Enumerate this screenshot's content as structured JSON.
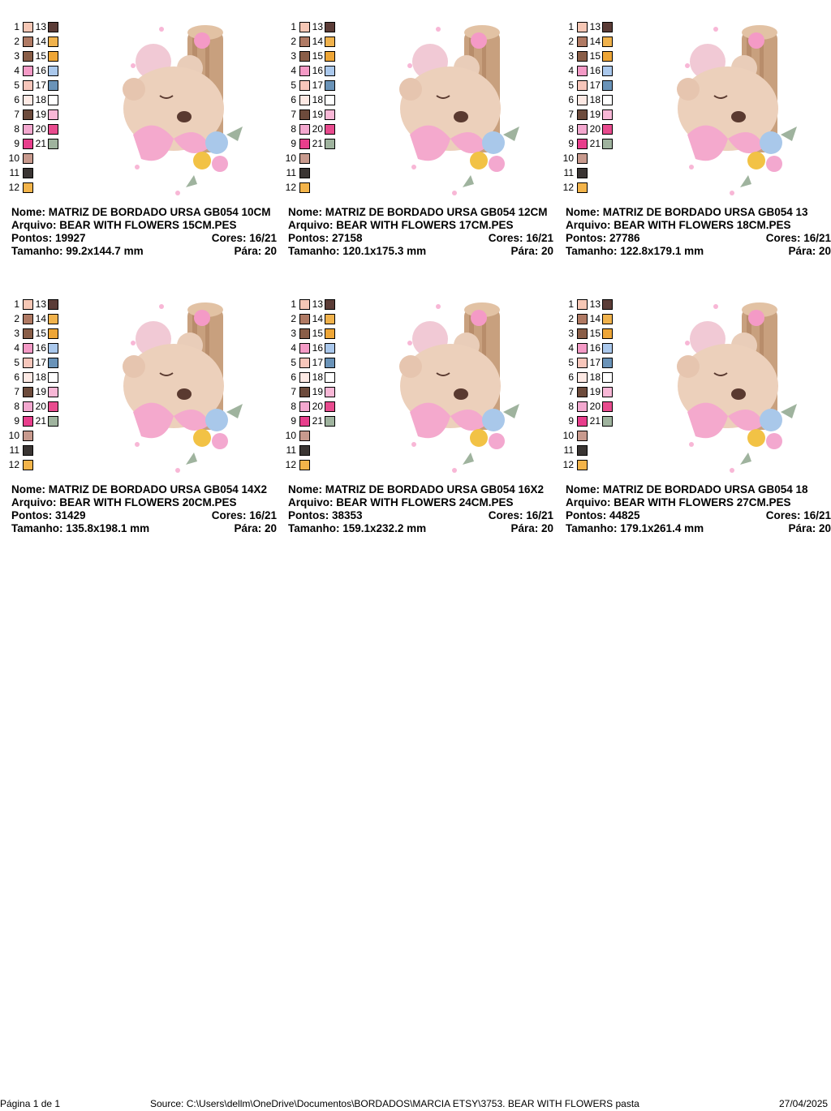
{
  "palette": [
    "#f6c7b5",
    "#b07a64",
    "#8a5e48",
    "#f49ac6",
    "#f7c6bb",
    "#fde9e4",
    "#6d4b3c",
    "#f3a8cf",
    "#e83e8c",
    "#c89a8e",
    "#3a3533",
    "#f3b44a",
    "#5b3c37",
    "#f0b24c",
    "#eea637",
    "#aac8ec",
    "#6a93b8",
    "#ffffff",
    "#f8b7d6",
    "#e84b8e",
    "#9fb39e"
  ],
  "legend_numbers": [
    "1",
    "2",
    "3",
    "4",
    "5",
    "6",
    "7",
    "8",
    "9",
    "10",
    "11",
    "12",
    "13",
    "14",
    "15",
    "16",
    "17",
    "18",
    "19",
    "20",
    "21"
  ],
  "designs": [
    {
      "nome": "Nome: MATRIZ DE BORDADO URSA GB054 10CM",
      "arquivo": "Arquivo: BEAR WITH FLOWERS 15CM.PES",
      "pontos": "Pontos: 19927",
      "cores": "Cores: 16/21",
      "tamanho": "Tamanho: 99.2x144.7 mm",
      "para": "Pára: 20"
    },
    {
      "nome": "Nome: MATRIZ DE BORDADO URSA GB054 12CM",
      "arquivo": "Arquivo: BEAR WITH FLOWERS 17CM.PES",
      "pontos": "Pontos: 27158",
      "cores": "Cores: 16/21",
      "tamanho": "Tamanho: 120.1x175.3 mm",
      "para": "Pára: 20"
    },
    {
      "nome": "Nome: MATRIZ DE BORDADO URSA GB054 13",
      "arquivo": "Arquivo: BEAR WITH FLOWERS 18CM.PES",
      "pontos": "Pontos: 27786",
      "cores": "Cores: 16/21",
      "tamanho": "Tamanho: 122.8x179.1 mm",
      "para": "Pára: 20"
    },
    {
      "nome": "Nome: MATRIZ DE BORDADO URSA GB054 14X2",
      "arquivo": "Arquivo: BEAR WITH FLOWERS 20CM.PES",
      "pontos": "Pontos: 31429",
      "cores": "Cores: 16/21",
      "tamanho": "Tamanho: 135.8x198.1 mm",
      "para": "Pára: 20"
    },
    {
      "nome": "Nome: MATRIZ DE BORDADO URSA GB054 16X2",
      "arquivo": "Arquivo: BEAR WITH FLOWERS 24CM.PES",
      "pontos": "Pontos: 38353",
      "cores": "Cores: 16/21",
      "tamanho": "Tamanho: 159.1x232.2 mm",
      "para": "Pára: 20"
    },
    {
      "nome": "Nome: MATRIZ DE BORDADO URSA GB054 18",
      "arquivo": "Arquivo: BEAR WITH FLOWERS 27CM.PES",
      "pontos": "Pontos: 44825",
      "cores": "Cores: 16/21",
      "tamanho": "Tamanho: 179.1x261.4 mm",
      "para": "Pára: 20"
    }
  ],
  "footer": {
    "page": "Página 1 de 1",
    "source": "Source: C:\\Users\\dellm\\OneDrive\\Documentos\\BORDADOS\\MARCIA ETSY\\3753. BEAR WITH FLOWERS pasta",
    "date": "27/04/2025"
  }
}
